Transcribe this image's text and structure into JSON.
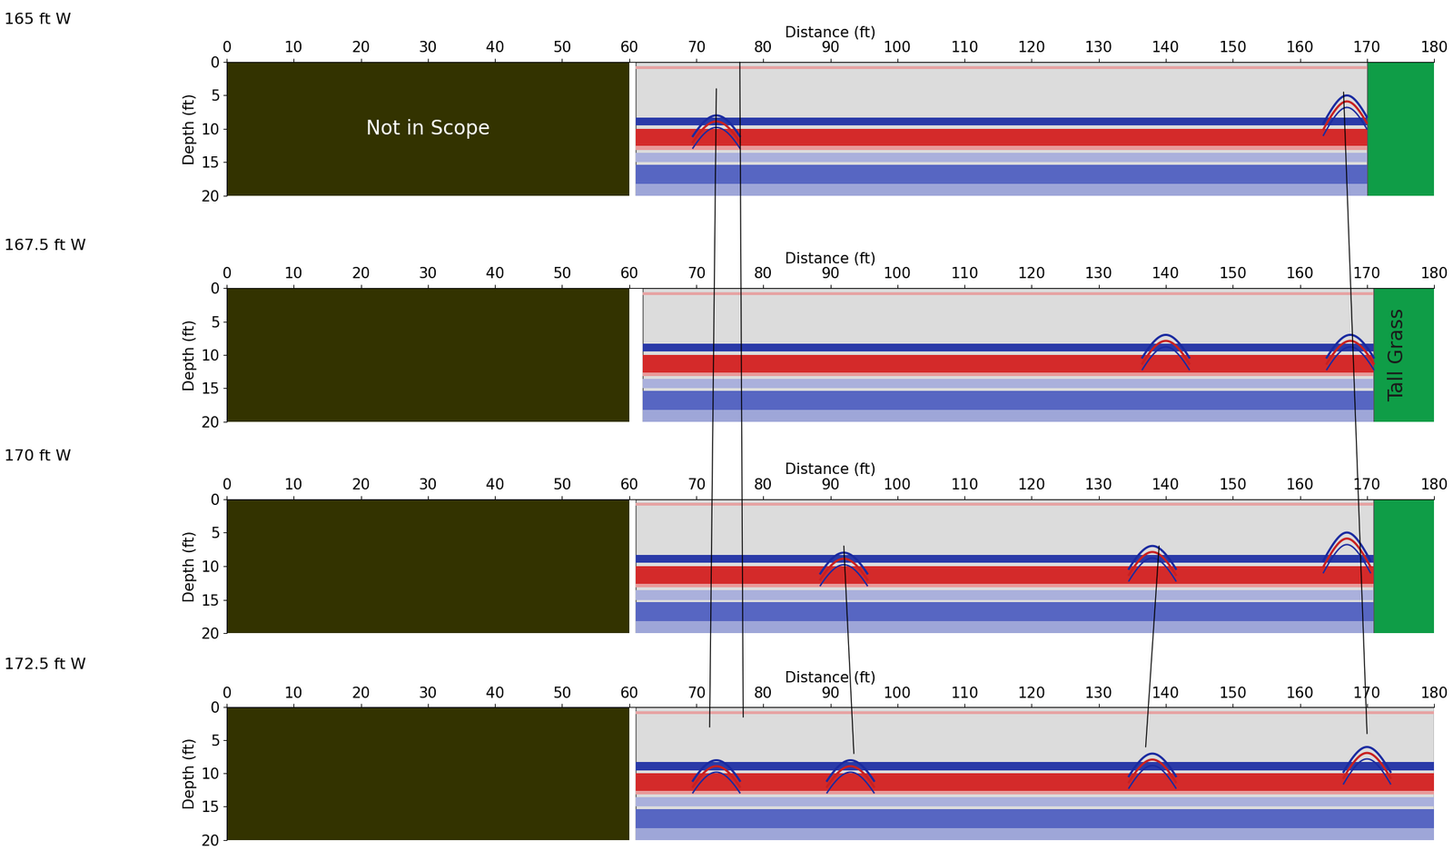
{
  "chart_data": [
    {
      "type": "radargram",
      "title": "165 ft W",
      "x_label": "Distance (ft)",
      "y_label": "Depth (ft)",
      "xlim": [
        0,
        180
      ],
      "ylim": [
        20,
        0
      ],
      "xticks": [
        0,
        10,
        20,
        30,
        40,
        50,
        60,
        70,
        80,
        90,
        100,
        110,
        120,
        130,
        140,
        150,
        160,
        170,
        180
      ],
      "yticks": [
        0,
        5,
        10,
        15,
        20
      ],
      "regions": [
        {
          "label": "Not in Scope",
          "x": [
            0,
            60
          ],
          "color": "#333300"
        },
        {
          "x": [
            169,
            180
          ],
          "color": "#0f9d47"
        }
      ],
      "scan_x": [
        61,
        170
      ],
      "hyperbolas": [
        {
          "x": 73,
          "depth": 8
        },
        {
          "x": 167,
          "depth": 5
        }
      ]
    },
    {
      "type": "radargram",
      "title": "167.5 ft W",
      "x_label": "Distance (ft)",
      "y_label": "Depth (ft)",
      "xlim": [
        0,
        180
      ],
      "ylim": [
        20,
        0
      ],
      "xticks": [
        0,
        10,
        20,
        30,
        40,
        50,
        60,
        70,
        80,
        90,
        100,
        110,
        120,
        130,
        140,
        150,
        160,
        170,
        180
      ],
      "yticks": [
        0,
        5,
        10,
        15,
        20
      ],
      "regions": [
        {
          "x": [
            0,
            60
          ],
          "color": "#333300"
        },
        {
          "label": "Tall Grass",
          "x": [
            169,
            180
          ],
          "color": "#0f9d47"
        }
      ],
      "scan_x": [
        62,
        171
      ],
      "hyperbolas": [
        {
          "x": 140,
          "depth": 7
        },
        {
          "x": 167.5,
          "depth": 7
        }
      ]
    },
    {
      "type": "radargram",
      "title": "170 ft W",
      "x_label": "Distance (ft)",
      "y_label": "Depth (ft)",
      "xlim": [
        0,
        180
      ],
      "ylim": [
        20,
        0
      ],
      "xticks": [
        0,
        10,
        20,
        30,
        40,
        50,
        60,
        70,
        80,
        90,
        100,
        110,
        120,
        130,
        140,
        150,
        160,
        170,
        180
      ],
      "yticks": [
        0,
        5,
        10,
        15,
        20
      ],
      "regions": [
        {
          "x": [
            0,
            60
          ],
          "color": "#333300"
        },
        {
          "x": [
            169,
            180
          ],
          "color": "#0f9d47"
        }
      ],
      "scan_x": [
        61,
        171
      ],
      "hyperbolas": [
        {
          "x": 92,
          "depth": 8
        },
        {
          "x": 138,
          "depth": 7
        },
        {
          "x": 167,
          "depth": 5
        }
      ]
    },
    {
      "type": "radargram",
      "title": "172.5 ft W",
      "x_label": "Distance (ft)",
      "y_label": "Depth (ft)",
      "xlim": [
        0,
        180
      ],
      "ylim": [
        20,
        0
      ],
      "xticks": [
        0,
        10,
        20,
        30,
        40,
        50,
        60,
        70,
        80,
        90,
        100,
        110,
        120,
        130,
        140,
        150,
        160,
        170,
        180
      ],
      "yticks": [
        0,
        5,
        10,
        15,
        20
      ],
      "regions": [
        {
          "x": [
            0,
            60
          ],
          "color": "#333300"
        }
      ],
      "scan_x": [
        61,
        180
      ],
      "hyperbolas": [
        {
          "x": 73,
          "depth": 8
        },
        {
          "x": 93,
          "depth": 8
        },
        {
          "x": 138,
          "depth": 7
        },
        {
          "x": 170,
          "depth": 6
        }
      ]
    }
  ],
  "bands": [
    {
      "depth": [
        0.6,
        1.0
      ],
      "color": "#e6a3a3"
    },
    {
      "depth": [
        8.3,
        9.5
      ],
      "color": "#2a3aa8"
    },
    {
      "depth": [
        10.0,
        12.6
      ],
      "color": "#d42a2a"
    },
    {
      "depth": [
        12.6,
        13.2
      ],
      "color": "#e89a9a"
    },
    {
      "depth": [
        13.6,
        15.0
      ],
      "color": "#aab0dc"
    },
    {
      "depth": [
        15.4,
        18.2
      ],
      "color": "#5766c2"
    },
    {
      "depth": [
        18.2,
        20.0
      ],
      "color": "#9ea6d8"
    }
  ],
  "alignments": [
    [
      {
        "panel": 0,
        "x": 73,
        "depth": 4
      },
      {
        "panel": 3,
        "x": 72,
        "depth": 3
      }
    ],
    [
      {
        "panel": 0,
        "x": 76.5,
        "depth": 0
      },
      {
        "panel": 3,
        "x": 77,
        "depth": 1.5
      }
    ],
    [
      {
        "panel": 2,
        "x": 92,
        "depth": 7
      },
      {
        "panel": 3,
        "x": 93.5,
        "depth": 7
      }
    ],
    [
      {
        "panel": 2,
        "x": 139,
        "depth": 7
      },
      {
        "panel": 3,
        "x": 137,
        "depth": 6
      }
    ],
    [
      {
        "panel": 0,
        "x": 166.5,
        "depth": 4.5
      },
      {
        "panel": 3,
        "x": 170,
        "depth": 4
      }
    ]
  ]
}
